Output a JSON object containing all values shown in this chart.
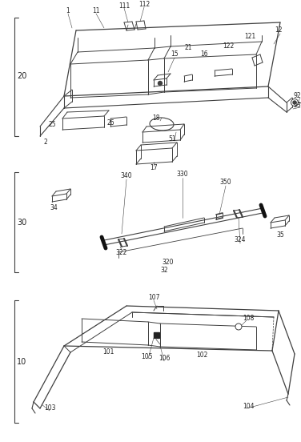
{
  "bg_color": "#ffffff",
  "line_color": "#404040",
  "text_color": "#222222",
  "figsize": [
    3.76,
    5.52
  ],
  "dpi": 100
}
